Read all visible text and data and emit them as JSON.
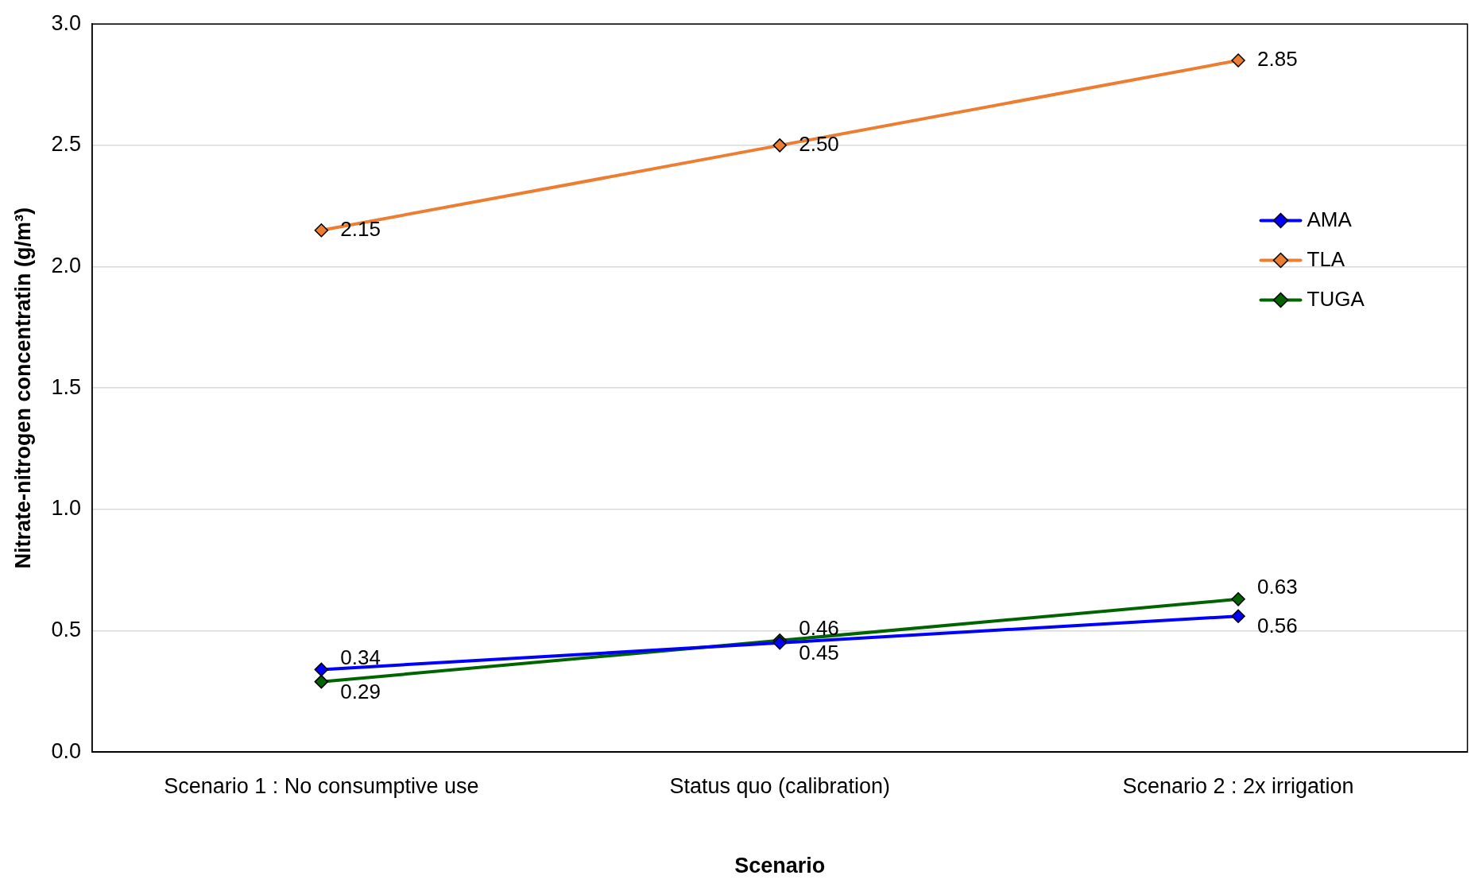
{
  "chart_data": {
    "type": "line",
    "xlabel": "Scenario",
    "ylabel": "Nitrate-nitrogen concentratin (g/m³)",
    "categories": [
      "Scenario 1 : No consumptive use",
      "Status quo (calibration)",
      "Scenario 2 : 2x irrigation"
    ],
    "series": [
      {
        "name": "AMA",
        "color": "#0000ff",
        "values": [
          0.34,
          0.45,
          0.56
        ],
        "value_labels": [
          "0.34",
          "0.45",
          "0.56"
        ]
      },
      {
        "name": "TLA",
        "color": "#ed7d31",
        "values": [
          2.15,
          2.5,
          2.85
        ],
        "value_labels": [
          "2.15",
          "2.50",
          "2.85"
        ]
      },
      {
        "name": "TUGA",
        "color": "#006400",
        "values": [
          0.29,
          0.46,
          0.63
        ],
        "value_labels": [
          "0.29",
          "0.46",
          "0.63"
        ]
      }
    ],
    "ylim": [
      0,
      3
    ],
    "yticks": [
      {
        "value": 0,
        "label": "0.0"
      },
      {
        "value": 0.5,
        "label": "0.5"
      },
      {
        "value": 1,
        "label": "1.0"
      },
      {
        "value": 1.5,
        "label": "1.5"
      },
      {
        "value": 2,
        "label": "2.0"
      },
      {
        "value": 2.5,
        "label": "2.5"
      },
      {
        "value": 3,
        "label": "3.0"
      }
    ],
    "grid": "y",
    "legend": "right",
    "marker": "diamond",
    "line_style": "solid"
  }
}
